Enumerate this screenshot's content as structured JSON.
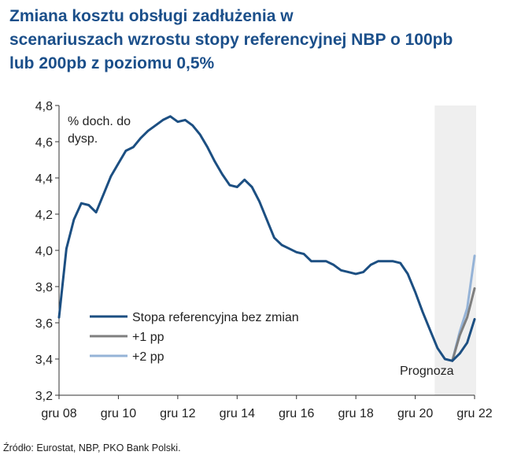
{
  "title_lines": [
    "Zmiana kosztu obsługi zadłużenia w",
    "scenariuszach wzrostu stopy referencyjnej NBP o 100pb",
    "lub 200pb z poziomu 0,5%"
  ],
  "source": "Źródło: Eurostat, NBP, PKO Bank Polski.",
  "colors": {
    "base": "#1c4f82",
    "plus1": "#7f7f7f",
    "plus2": "#95b3d7",
    "forecast_band": "#efefef",
    "title": "#1b4f8a"
  },
  "chart_data": {
    "type": "line",
    "title": "Zmiana kosztu obsługi zadłużenia w scenariuszach wzrostu stopy referencyjnej NBP o 100pb lub 200pb z poziomu 0,5%",
    "ylabel_annotation": [
      "% doch. do",
      "dysp."
    ],
    "forecast_label": "Prognoza",
    "forecast_range": [
      2021.0,
      2022.0
    ],
    "xlim": [
      2008.0,
      2022.0
    ],
    "ylim": [
      3.2,
      4.8
    ],
    "y_ticks": [
      3.2,
      3.4,
      3.6,
      3.8,
      4.0,
      4.2,
      4.4,
      4.6,
      4.8
    ],
    "y_tick_labels": [
      "3,2",
      "3,4",
      "3,6",
      "3,8",
      "4,0",
      "4,2",
      "4,4",
      "4,6",
      "4,8"
    ],
    "x_ticks": [
      2008,
      2010,
      2012,
      2014,
      2016,
      2018,
      2020,
      2022
    ],
    "x_tick_labels": [
      "gru 08",
      "gru 10",
      "gru 12",
      "gru 14",
      "gru 16",
      "gru 18",
      "gru 20",
      "gru 22"
    ],
    "legend": [
      "Stopa referencyjna bez zmian",
      "+1 pp",
      "+2 pp"
    ],
    "series": [
      {
        "name": "Stopa referencyjna bez zmian",
        "key": "base",
        "x": [
          2008.0,
          2008.25,
          2008.5,
          2008.75,
          2009.0,
          2009.25,
          2009.5,
          2009.75,
          2010.0,
          2010.25,
          2010.5,
          2010.75,
          2011.0,
          2011.25,
          2011.5,
          2011.75,
          2012.0,
          2012.25,
          2012.5,
          2012.75,
          2013.0,
          2013.25,
          2013.5,
          2013.75,
          2014.0,
          2014.25,
          2014.5,
          2014.75,
          2015.0,
          2015.25,
          2015.5,
          2015.75,
          2016.0,
          2016.25,
          2016.5,
          2016.75,
          2017.0,
          2017.25,
          2017.5,
          2017.75,
          2018.0,
          2018.25,
          2018.5,
          2018.75,
          2019.0,
          2019.25,
          2019.5,
          2019.75,
          2020.0,
          2020.25,
          2020.5,
          2020.75,
          2021.0,
          2021.25,
          2021.5,
          2021.75,
          2022.0
        ],
        "values": [
          3.63,
          4.01,
          4.17,
          4.26,
          4.25,
          4.21,
          4.31,
          4.41,
          4.48,
          4.55,
          4.57,
          4.62,
          4.66,
          4.69,
          4.72,
          4.74,
          4.71,
          4.72,
          4.69,
          4.64,
          4.57,
          4.49,
          4.42,
          4.36,
          4.35,
          4.39,
          4.35,
          4.27,
          4.17,
          4.07,
          4.03,
          4.01,
          3.99,
          3.98,
          3.94,
          3.94,
          3.94,
          3.92,
          3.89,
          3.88,
          3.87,
          3.88,
          3.92,
          3.94,
          3.94,
          3.94,
          3.93,
          3.87,
          3.77,
          3.66,
          3.56,
          3.46,
          3.4,
          3.39,
          3.43,
          3.49,
          3.62
        ]
      },
      {
        "name": "+1 pp",
        "key": "plus1",
        "x": [
          2021.25,
          2021.5,
          2021.75,
          2022.0
        ],
        "values": [
          3.39,
          3.53,
          3.63,
          3.79
        ]
      },
      {
        "name": "+2 pp",
        "key": "plus2",
        "x": [
          2021.25,
          2021.5,
          2021.75,
          2022.0
        ],
        "values": [
          3.39,
          3.55,
          3.68,
          3.97
        ]
      }
    ]
  }
}
